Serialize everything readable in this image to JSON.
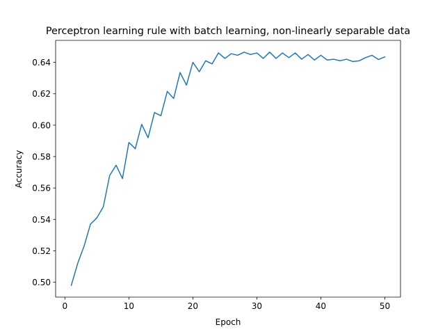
{
  "chart_data": {
    "type": "line",
    "title": "Perceptron learning rule with batch learning, non-linearly separable data",
    "xlabel": "Epoch",
    "ylabel": "Accuracy",
    "xlim": [
      -1.45,
      52.45
    ],
    "ylim": [
      0.4905,
      0.654
    ],
    "xticks": [
      0,
      10,
      20,
      30,
      40,
      50
    ],
    "yticks": [
      0.5,
      0.52,
      0.54,
      0.56,
      0.58,
      0.6,
      0.62,
      0.64
    ],
    "xtick_labels": [
      "0",
      "10",
      "20",
      "30",
      "40",
      "50"
    ],
    "ytick_labels": [
      "0.50",
      "0.52",
      "0.54",
      "0.56",
      "0.58",
      "0.60",
      "0.62",
      "0.64"
    ],
    "grid": false,
    "series": [
      {
        "color": "#1f77b4",
        "x": [
          1,
          2,
          3,
          4,
          5,
          6,
          7,
          8,
          9,
          10,
          11,
          12,
          13,
          14,
          15,
          16,
          17,
          18,
          19,
          20,
          21,
          22,
          23,
          24,
          25,
          26,
          27,
          28,
          29,
          30,
          31,
          32,
          33,
          34,
          35,
          36,
          37,
          38,
          39,
          40,
          41,
          42,
          43,
          44,
          45,
          46,
          47,
          48,
          49,
          50
        ],
        "values": [
          0.498,
          0.512,
          0.523,
          0.537,
          0.541,
          0.548,
          0.568,
          0.5745,
          0.566,
          0.589,
          0.585,
          0.6005,
          0.592,
          0.608,
          0.606,
          0.6215,
          0.617,
          0.6335,
          0.6255,
          0.64,
          0.634,
          0.641,
          0.639,
          0.646,
          0.6425,
          0.6455,
          0.6445,
          0.6465,
          0.645,
          0.646,
          0.6425,
          0.6465,
          0.6425,
          0.646,
          0.643,
          0.646,
          0.642,
          0.645,
          0.6415,
          0.6445,
          0.6415,
          0.642,
          0.641,
          0.642,
          0.6405,
          0.641,
          0.643,
          0.6445,
          0.6418,
          0.6435
        ]
      }
    ]
  }
}
